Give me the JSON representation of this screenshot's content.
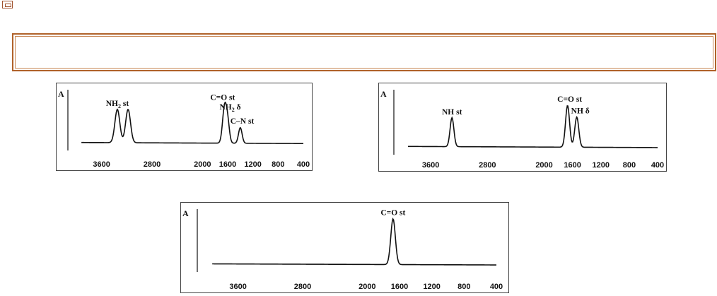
{
  "page": {
    "corner_icon": "window-restore-icon",
    "banner_text": ""
  },
  "chart_data": [
    {
      "type": "line",
      "xlim": [
        4000,
        400
      ],
      "ticks": [
        3600,
        2800,
        2000,
        1600,
        1200,
        800,
        400
      ],
      "ylabel": "A",
      "baseline": 0.05,
      "peaks": [
        {
          "x": 3350,
          "height": 0.62,
          "width": 55
        },
        {
          "x": 3180,
          "height": 0.62,
          "width": 55
        },
        {
          "x": 1650,
          "height": 0.66,
          "width": 45
        },
        {
          "x": 1600,
          "height": 0.36,
          "width": 40
        },
        {
          "x": 1400,
          "height": 0.29,
          "width": 40
        }
      ],
      "annotations": [
        {
          "text": "NH",
          "sub": "2",
          "after": " st",
          "x": 3350
        },
        {
          "text": "C=O st",
          "sub": "",
          "after": "",
          "x": 1680
        },
        {
          "text": "NH",
          "sub": "2",
          "after": " δ",
          "x": 1560
        },
        {
          "text": "C–N st",
          "sub": "",
          "after": "",
          "x": 1370
        }
      ]
    },
    {
      "type": "line",
      "xlim": [
        4000,
        400
      ],
      "ticks": [
        3600,
        2800,
        2000,
        1600,
        1200,
        800,
        400
      ],
      "ylabel": "A",
      "baseline": 0.05,
      "peaks": [
        {
          "x": 3300,
          "height": 0.5,
          "width": 38
        },
        {
          "x": 1670,
          "height": 0.72,
          "width": 40
        },
        {
          "x": 1540,
          "height": 0.52,
          "width": 40
        }
      ],
      "annotations": [
        {
          "text": "NH st",
          "sub": "",
          "after": "",
          "x": 3300
        },
        {
          "text": "C=O st",
          "sub": "",
          "after": "",
          "x": 1640
        },
        {
          "text": "NH δ",
          "sub": "",
          "after": "",
          "x": 1490
        }
      ]
    },
    {
      "type": "line",
      "xlim": [
        4000,
        400
      ],
      "ticks": [
        3600,
        2800,
        2000,
        1600,
        1200,
        800,
        400
      ],
      "ylabel": "A",
      "baseline": 0.05,
      "peaks": [
        {
          "x": 1680,
          "height": 0.82,
          "width": 40
        }
      ],
      "annotations": [
        {
          "text": "C=O st",
          "sub": "",
          "after": "",
          "x": 1680
        }
      ]
    }
  ]
}
